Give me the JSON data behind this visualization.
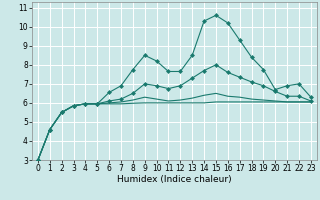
{
  "xlabel": "Humidex (Indice chaleur)",
  "background_color": "#cce8e8",
  "grid_color": "#ffffff",
  "line_color": "#1a7a6e",
  "xlim": [
    -0.5,
    23.5
  ],
  "ylim": [
    3,
    11.3
  ],
  "xticks": [
    0,
    1,
    2,
    3,
    4,
    5,
    6,
    7,
    8,
    9,
    10,
    11,
    12,
    13,
    14,
    15,
    16,
    17,
    18,
    19,
    20,
    21,
    22,
    23
  ],
  "yticks": [
    3,
    4,
    5,
    6,
    7,
    8,
    9,
    10,
    11
  ],
  "line1_x": [
    0,
    1,
    2,
    3,
    4,
    5,
    6,
    7,
    8,
    9,
    10,
    11,
    12,
    13,
    14,
    15,
    16,
    17,
    18,
    19,
    20,
    21,
    22,
    23
  ],
  "line1_y": [
    3.0,
    4.6,
    5.5,
    5.85,
    5.95,
    5.95,
    6.55,
    6.9,
    7.75,
    8.5,
    8.2,
    7.65,
    7.65,
    8.5,
    10.3,
    10.6,
    10.2,
    9.3,
    8.4,
    7.75,
    6.7,
    6.9,
    7.0,
    6.3
  ],
  "line2_x": [
    0,
    1,
    2,
    3,
    4,
    5,
    6,
    7,
    8,
    9,
    10,
    11,
    12,
    13,
    14,
    15,
    16,
    17,
    18,
    19,
    20,
    21,
    22,
    23
  ],
  "line2_y": [
    3.0,
    4.6,
    5.5,
    5.85,
    5.95,
    5.95,
    6.1,
    6.2,
    6.5,
    7.0,
    6.9,
    6.75,
    6.9,
    7.3,
    7.7,
    8.0,
    7.6,
    7.35,
    7.1,
    6.9,
    6.6,
    6.35,
    6.35,
    6.1
  ],
  "line3_x": [
    0,
    1,
    2,
    3,
    4,
    5,
    6,
    7,
    8,
    9,
    10,
    11,
    12,
    13,
    14,
    15,
    16,
    17,
    18,
    19,
    20,
    21,
    22,
    23
  ],
  "line3_y": [
    3.0,
    4.6,
    5.5,
    5.85,
    5.95,
    5.95,
    6.0,
    6.05,
    6.15,
    6.3,
    6.2,
    6.1,
    6.15,
    6.25,
    6.4,
    6.5,
    6.35,
    6.3,
    6.2,
    6.15,
    6.1,
    6.05,
    6.05,
    6.05
  ],
  "line4_x": [
    0,
    1,
    2,
    3,
    4,
    5,
    6,
    7,
    8,
    9,
    10,
    11,
    12,
    13,
    14,
    15,
    16,
    17,
    18,
    19,
    20,
    21,
    22,
    23
  ],
  "line4_y": [
    3.0,
    4.6,
    5.5,
    5.85,
    5.95,
    5.95,
    5.95,
    5.95,
    5.98,
    6.0,
    6.0,
    6.0,
    6.0,
    6.0,
    6.0,
    6.05,
    6.05,
    6.05,
    6.05,
    6.05,
    6.05,
    6.05,
    6.05,
    6.05
  ],
  "xlabel_fontsize": 6.5,
  "tick_fontsize": 5.5
}
